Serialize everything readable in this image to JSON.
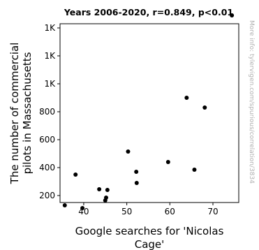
{
  "chart_data": {
    "type": "scatter",
    "title": "Years 2006-2020, r=0.849, p<0.01",
    "xlabel_lines": [
      "Google searches for 'Nicolas",
      "Cage'"
    ],
    "ylabel_lines": [
      "The number of commercial",
      "pilots in Massachusetts"
    ],
    "credit": "More info: tylervigen.com/spurious/correlation/3834",
    "xlim": [
      34.5,
      76
    ],
    "ylim": [
      150,
      1430
    ],
    "x_ticks": [
      {
        "value": 40,
        "label": "40"
      },
      {
        "value": 50,
        "label": "50"
      },
      {
        "value": 60,
        "label": "60"
      },
      {
        "value": 70,
        "label": "70"
      }
    ],
    "y_ticks": [
      {
        "value": 200,
        "label": "200"
      },
      {
        "value": 400,
        "label": "400"
      },
      {
        "value": 600,
        "label": "600"
      },
      {
        "value": 800,
        "label": "800"
      },
      {
        "value": 1000,
        "label": "1K"
      },
      {
        "value": 1200,
        "label": "1K"
      },
      {
        "value": 1400,
        "label": "1K"
      }
    ],
    "grid": false,
    "marker_color": "#000000",
    "points": [
      {
        "x": 35.6,
        "y": 130
      },
      {
        "x": 39.7,
        "y": 110
      },
      {
        "x": 38.1,
        "y": 350
      },
      {
        "x": 43.6,
        "y": 245
      },
      {
        "x": 45.0,
        "y": 165
      },
      {
        "x": 45.2,
        "y": 185
      },
      {
        "x": 45.5,
        "y": 240
      },
      {
        "x": 50.3,
        "y": 515
      },
      {
        "x": 52.2,
        "y": 370
      },
      {
        "x": 52.3,
        "y": 290
      },
      {
        "x": 59.6,
        "y": 440
      },
      {
        "x": 63.9,
        "y": 900
      },
      {
        "x": 65.7,
        "y": 385
      },
      {
        "x": 68.1,
        "y": 830
      },
      {
        "x": 74.4,
        "y": 1490
      }
    ]
  }
}
